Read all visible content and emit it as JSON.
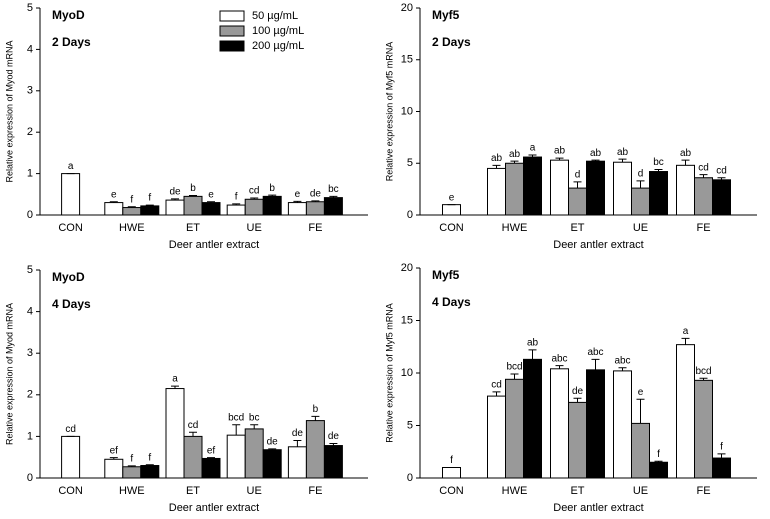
{
  "chart_data": [
    {
      "type": "bar",
      "title": "MyoD",
      "subtitle": "2 Days",
      "ylabel": "Relative expression of Myod mRNA",
      "xlabel": "Deer antler extract",
      "categories": [
        "CON",
        "HWE",
        "ET",
        "UE",
        "FE"
      ],
      "ylim": [
        0,
        5
      ],
      "yticks": [
        0,
        1,
        2,
        3,
        4,
        5
      ],
      "legend": "upper right",
      "series": [
        {
          "name": "50 µg/mL",
          "color": "#ffffff",
          "values": [
            1.0,
            0.3,
            0.36,
            0.24,
            0.3
          ],
          "errors": [
            0.0,
            0.02,
            0.03,
            0.03,
            0.03
          ],
          "letters": [
            "a",
            "e",
            "de",
            "f",
            "e"
          ]
        },
        {
          "name": "100 µg/mL",
          "color": "#999999",
          "values": [
            null,
            0.18,
            0.45,
            0.38,
            0.32
          ],
          "errors": [
            null,
            0.02,
            0.02,
            0.03,
            0.02
          ],
          "letters": [
            null,
            "f",
            "b",
            "cd",
            "de"
          ]
        },
        {
          "name": "200 µg/mL",
          "color": "#000000",
          "values": [
            null,
            0.22,
            0.3,
            0.45,
            0.42
          ],
          "errors": [
            null,
            0.02,
            0.02,
            0.03,
            0.03
          ],
          "letters": [
            null,
            "f",
            "e",
            "b",
            "bc"
          ]
        }
      ]
    },
    {
      "type": "bar",
      "title": "Myf5",
      "subtitle": "2 Days",
      "ylabel": "Relative expression of Myf5 mRNA",
      "xlabel": "Deer antler extract",
      "categories": [
        "CON",
        "HWE",
        "ET",
        "UE",
        "FE"
      ],
      "ylim": [
        0,
        20
      ],
      "yticks": [
        0,
        5,
        10,
        15,
        20
      ],
      "series": [
        {
          "color": "#ffffff",
          "values": [
            1.0,
            4.5,
            5.3,
            5.1,
            4.8
          ],
          "errors": [
            0.0,
            0.3,
            0.2,
            0.3,
            0.5
          ],
          "letters": [
            "e",
            "ab",
            "ab",
            "ab",
            "ab"
          ]
        },
        {
          "color": "#999999",
          "values": [
            null,
            5.0,
            2.6,
            2.6,
            3.6
          ],
          "errors": [
            null,
            0.2,
            0.6,
            0.7,
            0.3
          ],
          "letters": [
            null,
            "ab",
            "d",
            "d",
            "cd"
          ]
        },
        {
          "color": "#000000",
          "values": [
            null,
            5.6,
            5.2,
            4.2,
            3.4
          ],
          "errors": [
            null,
            0.2,
            0.1,
            0.2,
            0.2
          ],
          "letters": [
            null,
            "a",
            "ab",
            "bc",
            "cd"
          ]
        }
      ]
    },
    {
      "type": "bar",
      "title": "MyoD",
      "subtitle": "4 Days",
      "ylabel": "Relative expression of Myod mRNA",
      "xlabel": "Deer antler extract",
      "categories": [
        "CON",
        "HWE",
        "ET",
        "UE",
        "FE"
      ],
      "ylim": [
        0,
        5
      ],
      "yticks": [
        0,
        1,
        2,
        3,
        4,
        5
      ],
      "series": [
        {
          "color": "#ffffff",
          "values": [
            1.0,
            0.45,
            2.15,
            1.03,
            0.75
          ],
          "errors": [
            0.0,
            0.04,
            0.06,
            0.25,
            0.15
          ],
          "letters": [
            "cd",
            "ef",
            "a",
            "bcd",
            "de"
          ]
        },
        {
          "color": "#999999",
          "values": [
            null,
            0.27,
            1.0,
            1.18,
            1.38
          ],
          "errors": [
            null,
            0.02,
            0.1,
            0.1,
            0.1
          ],
          "letters": [
            null,
            "f",
            "cd",
            "bc",
            "b"
          ]
        },
        {
          "color": "#000000",
          "values": [
            null,
            0.3,
            0.47,
            0.68,
            0.78
          ],
          "errors": [
            null,
            0.02,
            0.02,
            0.02,
            0.05
          ],
          "letters": [
            null,
            "f",
            "ef",
            "de",
            "de"
          ]
        }
      ]
    },
    {
      "type": "bar",
      "title": "Myf5",
      "subtitle": "4 Days",
      "ylabel": "Relative expression of Myf5 mRNA",
      "xlabel": "Deer antler extract",
      "categories": [
        "CON",
        "HWE",
        "ET",
        "UE",
        "FE"
      ],
      "ylim": [
        0,
        20
      ],
      "yticks": [
        0,
        5,
        10,
        15,
        20
      ],
      "series": [
        {
          "color": "#ffffff",
          "values": [
            1.0,
            7.8,
            10.4,
            10.2,
            12.7
          ],
          "errors": [
            0.0,
            0.4,
            0.3,
            0.3,
            0.6
          ],
          "letters": [
            "f",
            "cd",
            "abc",
            "abc",
            "a"
          ]
        },
        {
          "color": "#999999",
          "values": [
            null,
            9.4,
            7.2,
            5.2,
            9.3
          ],
          "errors": [
            null,
            0.5,
            0.4,
            2.3,
            0.2
          ],
          "letters": [
            null,
            "bcd",
            "de",
            "e",
            "bcd"
          ]
        },
        {
          "color": "#000000",
          "values": [
            null,
            11.3,
            10.3,
            1.5,
            1.9
          ],
          "errors": [
            null,
            0.9,
            1.0,
            0.1,
            0.4
          ],
          "letters": [
            null,
            "ab",
            "abc",
            "f",
            "f"
          ]
        }
      ]
    }
  ]
}
